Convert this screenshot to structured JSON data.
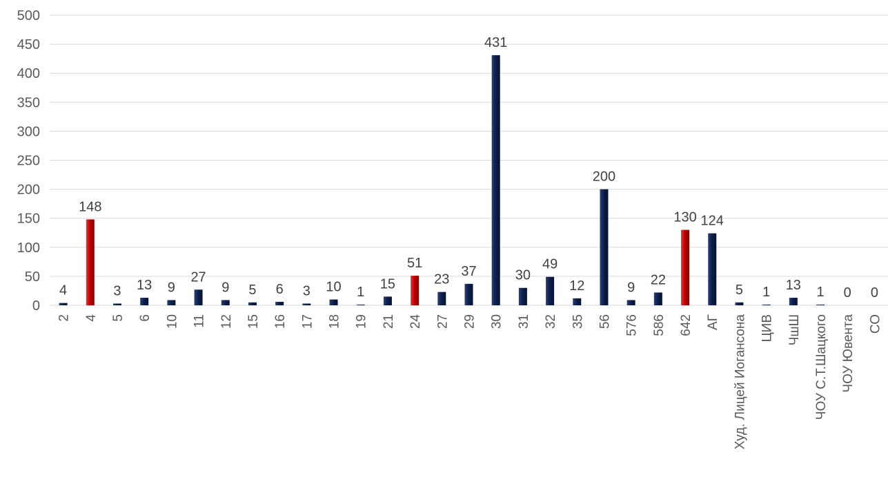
{
  "chart_data": {
    "type": "bar",
    "title": "",
    "xlabel": "",
    "ylabel": "",
    "ylim": [
      0,
      500
    ],
    "yticks": [
      0,
      50,
      100,
      150,
      200,
      250,
      300,
      350,
      400,
      450,
      500
    ],
    "grid": true,
    "legend": "none",
    "colors": {
      "default": "#0d1f4a",
      "highlight": "#c00000"
    },
    "categories": [
      "2",
      "4",
      "5",
      "6",
      "10",
      "11",
      "12",
      "15",
      "16",
      "17",
      "18",
      "19",
      "21",
      "24",
      "27",
      "29",
      "30",
      "31",
      "32",
      "35",
      "56",
      "576",
      "586",
      "642",
      "АГ",
      "Худ. Лицей Иогансона",
      "ЦИВ",
      "ЧшШ",
      "ЧОУ С.Т.Шацкого",
      "ЧОУ Ювента",
      "СО"
    ],
    "values": [
      4,
      148,
      3,
      13,
      9,
      27,
      9,
      5,
      6,
      3,
      10,
      1,
      15,
      51,
      23,
      37,
      431,
      30,
      49,
      12,
      200,
      9,
      22,
      130,
      124,
      5,
      1,
      13,
      1,
      0,
      0
    ],
    "highlighted": [
      "4",
      "24",
      "642"
    ]
  }
}
